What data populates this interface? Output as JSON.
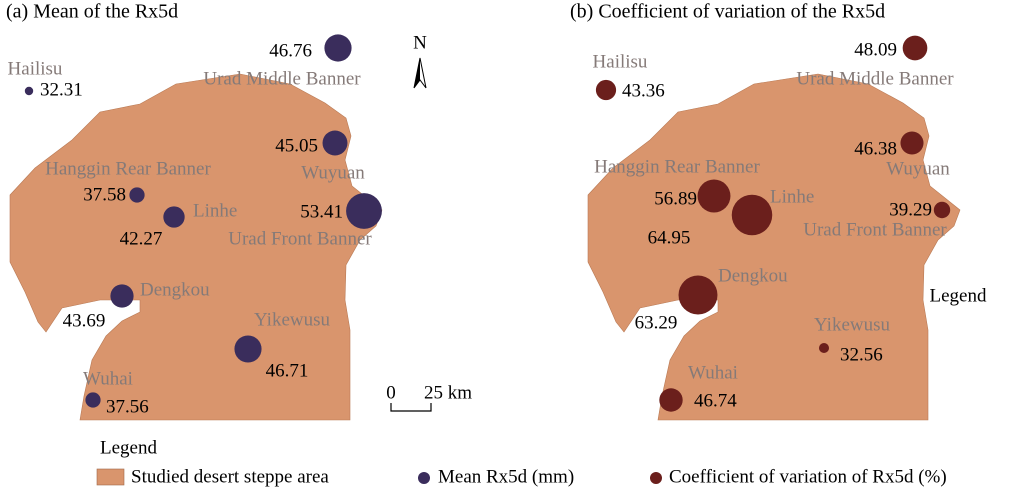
{
  "panels": [
    {
      "title": "(a) Mean of the Rx5d",
      "stations": [
        {
          "name": "Hailisu",
          "value": 32.31
        },
        {
          "name": "Urad Middle Banner",
          "value": 46.76
        },
        {
          "name": "Wuyuan",
          "value": 45.05
        },
        {
          "name": "Urad Front Banner",
          "value": 53.41
        },
        {
          "name": "Hanggin Rear Banner",
          "value": 37.58
        },
        {
          "name": "Linhe",
          "value": 42.27
        },
        {
          "name": "Dengkou",
          "value": 43.69
        },
        {
          "name": "Yikewusu",
          "value": 46.71
        },
        {
          "name": "Wuhai",
          "value": 37.56
        }
      ],
      "color": "#3a2d5c",
      "north": "N",
      "scale": {
        "start": "0",
        "end": "25 km"
      }
    },
    {
      "title": "(b) Coefficient of variation of the Rx5d",
      "stations": [
        {
          "name": "Hailisu",
          "value": 43.36
        },
        {
          "name": "Urad Middle Banner",
          "value": 48.09
        },
        {
          "name": "Wuyuan",
          "value": 46.38
        },
        {
          "name": "Urad Front Banner",
          "value": 39.29
        },
        {
          "name": "Hanggin Rear Banner",
          "value": 56.89
        },
        {
          "name": "Linhe",
          "value": 64.95
        },
        {
          "name": "Dengkou",
          "value": 63.29
        },
        {
          "name": "Yikewusu",
          "value": 32.56
        },
        {
          "name": "Wuhai",
          "value": 46.74
        }
      ],
      "color": "#6b1f1c",
      "legend_note": "Legend"
    }
  ],
  "legend": {
    "title": "Legend",
    "items": [
      "Studied desert steppe area",
      "Mean Rx5d (mm)",
      "Coefficient of variation of Rx5d (%)"
    ],
    "area_color": "#d9956d"
  }
}
